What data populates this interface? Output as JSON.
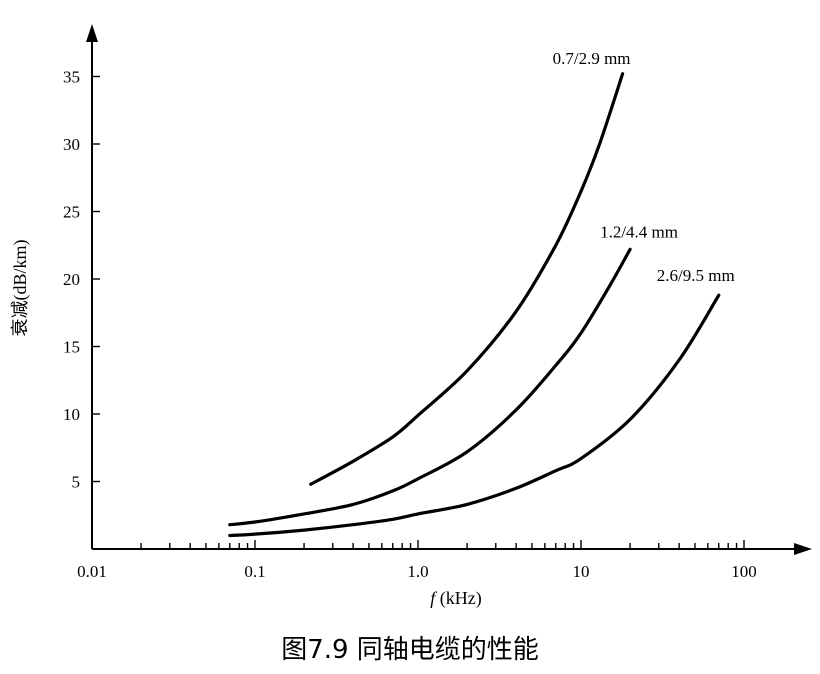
{
  "caption": "图7.9  同轴电缆的性能",
  "chart_data": {
    "type": "line",
    "x_scale": "log",
    "xlim": [
      0.01,
      200
    ],
    "ylim": [
      0,
      38
    ],
    "ylabel": "衰减(dB/km)",
    "xlabel_italic": "f",
    "xlabel_unit": " (kHz)",
    "x_ticks": [
      "0.01",
      "0.1",
      "1.0",
      "10",
      "100"
    ],
    "y_ticks": [
      "5",
      "10",
      "15",
      "20",
      "25",
      "30",
      "35"
    ],
    "grid": false,
    "series": [
      {
        "name": "0.7/2.9 mm",
        "x": [
          0.22,
          0.4,
          0.7,
          1.0,
          2.0,
          4.0,
          7.0,
          10,
          13,
          18
        ],
        "y": [
          4.8,
          6.5,
          8.3,
          9.9,
          13.2,
          17.6,
          22.5,
          26.5,
          30.0,
          35.2
        ]
      },
      {
        "name": "1.2/4.4 mm",
        "x": [
          0.07,
          0.1,
          0.2,
          0.4,
          0.7,
          1.0,
          2.0,
          4.0,
          7.0,
          10,
          15,
          20
        ],
        "y": [
          1.8,
          2.0,
          2.6,
          3.3,
          4.3,
          5.2,
          7.2,
          10.3,
          13.6,
          16.0,
          19.5,
          22.2
        ]
      },
      {
        "name": "2.6/9.5 mm",
        "x": [
          0.07,
          0.1,
          0.2,
          0.4,
          0.7,
          1.0,
          2.0,
          4.0,
          7.0,
          10,
          20,
          40,
          70
        ],
        "y": [
          1.0,
          1.1,
          1.4,
          1.8,
          2.2,
          2.6,
          3.3,
          4.5,
          5.8,
          6.7,
          9.6,
          14.0,
          18.8
        ]
      }
    ]
  }
}
